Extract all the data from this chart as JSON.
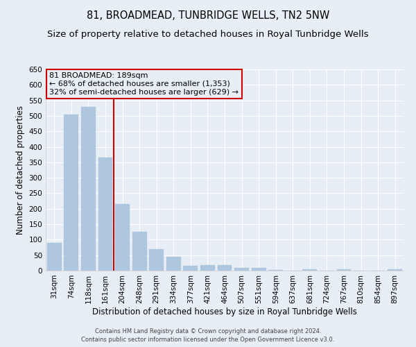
{
  "title": "81, BROADMEAD, TUNBRIDGE WELLS, TN2 5NW",
  "subtitle": "Size of property relative to detached houses in Royal Tunbridge Wells",
  "xlabel": "Distribution of detached houses by size in Royal Tunbridge Wells",
  "ylabel": "Number of detached properties",
  "footer1": "Contains HM Land Registry data © Crown copyright and database right 2024.",
  "footer2": "Contains public sector information licensed under the Open Government Licence v3.0.",
  "categories": [
    "31sqm",
    "74sqm",
    "118sqm",
    "161sqm",
    "204sqm",
    "248sqm",
    "291sqm",
    "334sqm",
    "377sqm",
    "421sqm",
    "464sqm",
    "507sqm",
    "551sqm",
    "594sqm",
    "637sqm",
    "681sqm",
    "724sqm",
    "767sqm",
    "810sqm",
    "854sqm",
    "897sqm"
  ],
  "values": [
    90,
    505,
    528,
    365,
    215,
    125,
    70,
    44,
    16,
    18,
    18,
    10,
    8,
    3,
    0,
    5,
    0,
    5,
    0,
    0,
    5
  ],
  "bar_color": "#aec6de",
  "bar_edgecolor": "#aec6de",
  "annotation_line1": "81 BROADMEAD: 189sqm",
  "annotation_line2": "← 68% of detached houses are smaller (1,353)",
  "annotation_line3": "32% of semi-detached houses are larger (629) →",
  "vline_x": 3.5,
  "vline_color": "#cc0000",
  "annotation_box_edgecolor": "#cc0000",
  "ylim": [
    0,
    650
  ],
  "yticks": [
    0,
    50,
    100,
    150,
    200,
    250,
    300,
    350,
    400,
    450,
    500,
    550,
    600,
    650
  ],
  "background_color": "#e8eef5",
  "grid_color": "#ffffff",
  "title_fontsize": 10.5,
  "subtitle_fontsize": 9.5,
  "xlabel_fontsize": 8.5,
  "ylabel_fontsize": 8.5,
  "tick_fontsize": 7.5,
  "annotation_fontsize": 8,
  "footer_fontsize": 6
}
